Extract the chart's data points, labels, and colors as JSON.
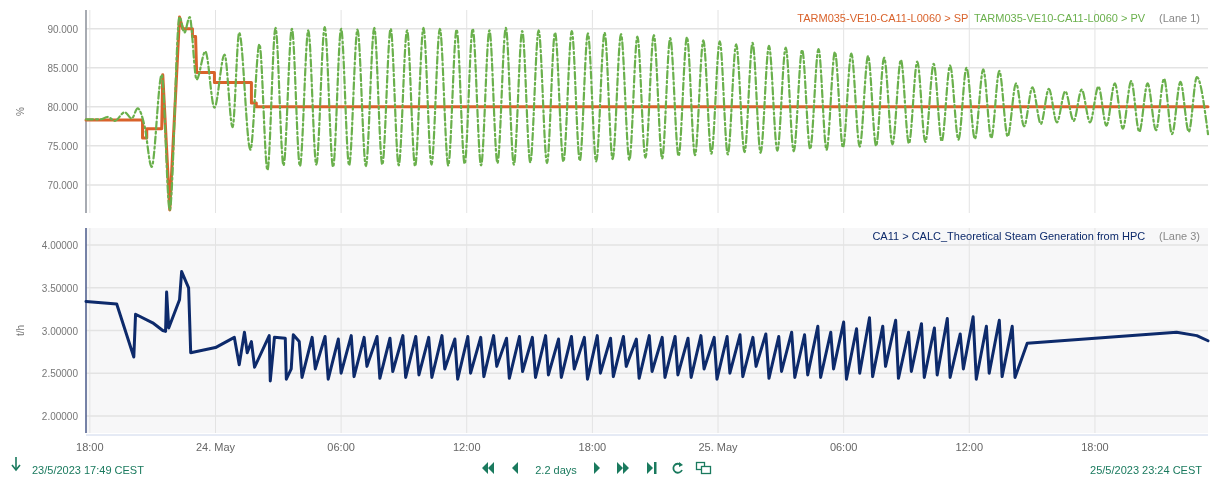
{
  "chart_data": [
    {
      "type": "line",
      "ylabel": "%",
      "xlim": [
        "2023-05-23T17:49",
        "2023-05-25T23:24"
      ],
      "xticks": [
        {
          "value": "2023-05-23T18:00",
          "label": null
        },
        {
          "value": "2023-05-24T00:00",
          "label": null
        },
        {
          "value": "2023-05-24T06:00",
          "label": null
        },
        {
          "value": "2023-05-24T12:00",
          "label": null
        },
        {
          "value": "2023-05-24T18:00",
          "label": null
        },
        {
          "value": "2023-05-25T00:00",
          "label": null
        },
        {
          "value": "2023-05-25T06:00",
          "label": null
        },
        {
          "value": "2023-05-25T12:00",
          "label": null
        },
        {
          "value": "2023-05-25T18:00",
          "label": null
        }
      ],
      "ylim": [
        66.4,
        92.4
      ],
      "yticks": [
        {
          "value": 70,
          "label": "70.000"
        },
        {
          "value": 75,
          "label": "75.000"
        },
        {
          "value": 80,
          "label": "80.000"
        },
        {
          "value": 85,
          "label": "85.000"
        },
        {
          "value": 90,
          "label": "90.000"
        }
      ],
      "tick_labels": "y",
      "grid": true,
      "legend": "top right",
      "annotations": [
        "(Lane 1)"
      ],
      "series": [
        {
          "name": "TARM035-VE10-CA11-L0060 > SP",
          "color": "#d9622b",
          "line_style": "solid",
          "x": [
            "2023-05-23T17:49",
            "2023-05-23T20:31",
            "2023-05-23T20:31",
            "2023-05-23T20:43",
            "2023-05-23T20:43",
            "2023-05-23T21:26",
            "2023-05-23T21:29",
            "2023-05-23T21:49",
            "2023-05-23T22:17",
            "2023-05-23T22:26",
            "2023-05-23T22:54",
            "2023-05-23T22:54",
            "2023-05-23T23:03",
            "2023-05-23T23:06",
            "2023-05-23T23:57",
            "2023-05-23T23:57",
            "2023-05-24T01:43",
            "2023-05-24T01:43",
            "2023-05-24T01:57",
            "2023-05-24T01:57",
            "2023-05-25T23:24"
          ],
          "values": [
            78.3,
            78.3,
            76.0,
            76.0,
            77.2,
            77.2,
            84.1,
            66.8,
            91.5,
            90.0,
            90.0,
            89.0,
            89.0,
            84.4,
            84.4,
            83.1,
            83.1,
            80.5,
            80.5,
            80.0,
            80.0
          ]
        },
        {
          "name": "TARM035-VE10-CA11-L0060 > PV",
          "color": "#6ab04c",
          "line_style": "dashed",
          "x": [
            "2023-05-23T17:49",
            "2023-05-23T18:29",
            "2023-05-23T18:52",
            "2023-05-23T19:11",
            "2023-05-23T19:40",
            "2023-05-23T20:00",
            "2023-05-23T20:17",
            "2023-05-23T20:37",
            "2023-05-23T20:57",
            "2023-05-23T21:26",
            "2023-05-23T21:49",
            "2023-05-23T22:17",
            "2023-05-23T22:31",
            "2023-05-23T22:46",
            "2023-05-23T23:06",
            "2023-05-23T23:31",
            "2023-05-23T23:57",
            "2023-05-24T00:26",
            "2023-05-24T00:49",
            "2023-05-24T01:08",
            "2023-05-24T01:40",
            "2023-05-24T02:06",
            "2023-05-24T02:29",
            "2023-05-24T02:52",
            "2023-05-24T03:15",
            "2023-05-24T03:39",
            "2023-05-24T04:02",
            "2023-05-24T04:26",
            "2023-05-24T04:49",
            "2023-05-24T05:13",
            "2023-05-24T05:37",
            "2023-05-24T06:00",
            "2023-05-24T06:23",
            "2023-05-24T06:47",
            "2023-05-24T07:11",
            "2023-05-24T07:35",
            "2023-05-24T07:58",
            "2023-05-24T08:22",
            "2023-05-24T08:45",
            "2023-05-24T09:09",
            "2023-05-24T09:32",
            "2023-05-24T09:56",
            "2023-05-24T10:19",
            "2023-05-24T10:43",
            "2023-05-24T11:07",
            "2023-05-24T11:31",
            "2023-05-24T11:54",
            "2023-05-24T12:17",
            "2023-05-24T12:41",
            "2023-05-24T13:05",
            "2023-05-24T13:28",
            "2023-05-24T13:52",
            "2023-05-24T14:15",
            "2023-05-24T14:39",
            "2023-05-24T15:02",
            "2023-05-24T15:26",
            "2023-05-24T15:50",
            "2023-05-24T16:13",
            "2023-05-24T16:37",
            "2023-05-24T17:01",
            "2023-05-24T17:24",
            "2023-05-24T17:47",
            "2023-05-24T18:11",
            "2023-05-24T18:35",
            "2023-05-24T18:58",
            "2023-05-24T19:22",
            "2023-05-24T19:46",
            "2023-05-24T20:09",
            "2023-05-24T20:32",
            "2023-05-24T20:56",
            "2023-05-24T21:20",
            "2023-05-24T21:43",
            "2023-05-24T22:07",
            "2023-05-24T22:31",
            "2023-05-24T22:54",
            "2023-05-24T23:18",
            "2023-05-24T23:41",
            "2023-05-25T00:05",
            "2023-05-25T00:28",
            "2023-05-25T00:52",
            "2023-05-25T01:16",
            "2023-05-25T01:39",
            "2023-05-25T02:02",
            "2023-05-25T02:26",
            "2023-05-25T02:50",
            "2023-05-25T03:14",
            "2023-05-25T03:37",
            "2023-05-25T04:01",
            "2023-05-25T04:24",
            "2023-05-25T04:48",
            "2023-05-25T05:11",
            "2023-05-25T05:35",
            "2023-05-25T05:58",
            "2023-05-25T06:22",
            "2023-05-25T06:46",
            "2023-05-25T07:10",
            "2023-05-25T07:33",
            "2023-05-25T07:56",
            "2023-05-25T08:20",
            "2023-05-25T08:44",
            "2023-05-25T09:07",
            "2023-05-25T09:31",
            "2023-05-25T09:54",
            "2023-05-25T10:18",
            "2023-05-25T10:41",
            "2023-05-25T11:05",
            "2023-05-25T11:29",
            "2023-05-25T11:52",
            "2023-05-25T12:16",
            "2023-05-25T12:40",
            "2023-05-25T13:03",
            "2023-05-25T13:26",
            "2023-05-25T13:50",
            "2023-05-25T14:14",
            "2023-05-25T14:37",
            "2023-05-25T15:01",
            "2023-05-25T15:25",
            "2023-05-25T15:48",
            "2023-05-25T16:11",
            "2023-05-25T16:35",
            "2023-05-25T16:59",
            "2023-05-25T17:22",
            "2023-05-25T17:46",
            "2023-05-25T18:10",
            "2023-05-25T18:33",
            "2023-05-25T18:57",
            "2023-05-25T19:20",
            "2023-05-25T19:44",
            "2023-05-25T20:07",
            "2023-05-25T20:31",
            "2023-05-25T20:55",
            "2023-05-25T21:18",
            "2023-05-25T21:41",
            "2023-05-25T22:05",
            "2023-05-25T22:29",
            "2023-05-25T22:52",
            "2023-05-25T23:24"
          ],
          "values": [
            78.4,
            78.4,
            78.7,
            78.2,
            79.3,
            78.5,
            79.8,
            77.5,
            72.3,
            84.1,
            66.8,
            91.5,
            89.5,
            91.5,
            83.5,
            87.1,
            79.9,
            86.7,
            77.4,
            89.5,
            74.5,
            88.0,
            71.9,
            90.1,
            72.5,
            90.0,
            72.4,
            89.8,
            72.6,
            90.2,
            72.3,
            90.0,
            72.5,
            89.9,
            72.4,
            90.1,
            72.6,
            90.0,
            72.5,
            89.8,
            72.4,
            90.1,
            72.6,
            90.0,
            72.5,
            89.9,
            72.7,
            90.0,
            72.5,
            89.8,
            72.8,
            90.1,
            72.6,
            89.7,
            72.9,
            89.8,
            72.8,
            89.5,
            73.0,
            89.7,
            73.1,
            89.4,
            73.0,
            89.5,
            73.3,
            89.3,
            73.2,
            89.0,
            73.5,
            89.2,
            73.4,
            88.8,
            73.7,
            88.9,
            73.8,
            88.5,
            74.0,
            88.4,
            73.9,
            88.0,
            74.2,
            88.2,
            74.1,
            87.8,
            74.4,
            87.6,
            74.3,
            87.3,
            74.6,
            87.4,
            74.5,
            87.0,
            74.8,
            86.8,
            74.9,
            86.5,
            75.0,
            86.3,
            75.2,
            86.0,
            75.3,
            85.8,
            75.5,
            85.5,
            75.6,
            85.3,
            75.8,
            85.0,
            75.9,
            84.8,
            76.0,
            84.6,
            76.2,
            83.0,
            77.5,
            82.5,
            77.8,
            82.3,
            78.0,
            82.0,
            78.2,
            82.2,
            78.0,
            82.6,
            77.6,
            83.0,
            77.2,
            83.3,
            76.8,
            83.0,
            77.0,
            83.6,
            76.5,
            83.2,
            76.8,
            83.8,
            76.5
          ]
        }
      ]
    },
    {
      "type": "line",
      "ylabel": "t/h",
      "xlim": [
        "2023-05-23T17:49",
        "2023-05-25T23:24"
      ],
      "xticks": [
        {
          "value": "2023-05-23T18:00",
          "label": "18:00"
        },
        {
          "value": "2023-05-24T00:00",
          "label": "24. May"
        },
        {
          "value": "2023-05-24T06:00",
          "label": "06:00"
        },
        {
          "value": "2023-05-24T12:00",
          "label": "12:00"
        },
        {
          "value": "2023-05-24T18:00",
          "label": "18:00"
        },
        {
          "value": "2023-05-25T00:00",
          "label": "25. May"
        },
        {
          "value": "2023-05-25T06:00",
          "label": "06:00"
        },
        {
          "value": "2023-05-25T12:00",
          "label": "12:00"
        },
        {
          "value": "2023-05-25T18:00",
          "label": "18:00"
        }
      ],
      "ylim": [
        1.8,
        4.2
      ],
      "yticks": [
        {
          "value": 2,
          "label": "2.00000"
        },
        {
          "value": 2.5,
          "label": "2.50000"
        },
        {
          "value": 3,
          "label": "3.00000"
        },
        {
          "value": 3.5,
          "label": "3.50000"
        },
        {
          "value": 4,
          "label": "4.00000"
        }
      ],
      "grid": true,
      "legend": "top right",
      "annotations": [
        "(Lane 3)",
        "23/5/2023 17:49  CEST",
        "2.2 days",
        "25/5/2023 23:24  CEST"
      ],
      "series": [
        {
          "name": "CA11 > CALC_Theoretical Steam Generation from HPC",
          "color": "#0d2a6b",
          "line_style": "solid",
          "x": [
            "2023-05-23T17:49",
            "2023-05-23T19:17",
            "2023-05-23T20:06",
            "2023-05-23T20:11",
            "2023-05-23T21:00",
            "2023-05-23T21:29",
            "2023-05-23T21:37",
            "2023-05-23T21:40",
            "2023-05-23T21:46",
            "2023-05-23T22:17",
            "2023-05-23T22:23",
            "2023-05-23T22:43",
            "2023-05-23T22:49",
            "2023-05-24T00:00",
            "2023-05-24T00:54",
            "2023-05-24T01:08",
            "2023-05-24T01:23",
            "2023-05-24T01:31",
            "2023-05-24T01:43",
            "2023-05-24T01:52",
            "2023-05-24T02:34",
            "2023-05-24T02:37",
            "2023-05-24T02:49",
            "2023-05-24T03:20",
            "2023-05-24T03:23",
            "2023-05-24T03:37",
            "2023-05-24T03:43",
            "2023-05-24T04:00",
            "2023-05-24T04:08",
            "2023-05-24T04:37",
            "2023-05-24T04:46",
            "2023-05-24T05:14",
            "2023-05-24T05:23",
            "2023-05-24T05:52",
            "2023-05-24T06:00",
            "2023-05-24T06:29",
            "2023-05-24T06:37",
            "2023-05-24T07:06",
            "2023-05-24T07:14",
            "2023-05-24T07:43",
            "2023-05-24T07:51",
            "2023-05-24T08:20",
            "2023-05-24T08:28",
            "2023-05-24T08:57",
            "2023-05-24T09:05",
            "2023-05-24T09:34",
            "2023-05-24T09:43",
            "2023-05-24T10:11",
            "2023-05-24T10:20",
            "2023-05-24T10:49",
            "2023-05-24T10:57",
            "2023-05-24T11:26",
            "2023-05-24T11:34",
            "2023-05-24T12:03",
            "2023-05-24T12:11",
            "2023-05-24T12:40",
            "2023-05-24T12:49",
            "2023-05-24T13:17",
            "2023-05-24T13:26",
            "2023-05-24T13:54",
            "2023-05-24T14:02",
            "2023-05-24T14:31",
            "2023-05-24T14:40",
            "2023-05-24T15:08",
            "2023-05-24T15:17",
            "2023-05-24T15:46",
            "2023-05-24T15:54",
            "2023-05-24T16:23",
            "2023-05-24T16:31",
            "2023-05-24T17:00",
            "2023-05-24T17:08",
            "2023-05-24T17:37",
            "2023-05-24T17:46",
            "2023-05-24T18:14",
            "2023-05-24T18:23",
            "2023-05-24T18:52",
            "2023-05-24T19:00",
            "2023-05-24T19:29",
            "2023-05-24T19:37",
            "2023-05-24T20:06",
            "2023-05-24T20:14",
            "2023-05-24T20:43",
            "2023-05-24T20:51",
            "2023-05-24T21:20",
            "2023-05-24T21:28",
            "2023-05-24T21:57",
            "2023-05-24T22:05",
            "2023-05-24T22:34",
            "2023-05-24T22:43",
            "2023-05-24T23:11",
            "2023-05-24T23:20",
            "2023-05-24T23:49",
            "2023-05-24T23:57",
            "2023-05-25T00:26",
            "2023-05-25T00:34",
            "2023-05-25T01:03",
            "2023-05-25T01:11",
            "2023-05-25T01:40",
            "2023-05-25T01:49",
            "2023-05-25T02:17",
            "2023-05-25T02:26",
            "2023-05-25T02:54",
            "2023-05-25T03:02",
            "2023-05-25T03:31",
            "2023-05-25T03:40",
            "2023-05-25T04:08",
            "2023-05-25T04:17",
            "2023-05-25T04:46",
            "2023-05-25T04:54",
            "2023-05-25T05:23",
            "2023-05-25T05:31",
            "2023-05-25T06:00",
            "2023-05-25T06:08",
            "2023-05-25T06:37",
            "2023-05-25T06:46",
            "2023-05-25T07:14",
            "2023-05-25T07:23",
            "2023-05-25T07:52",
            "2023-05-25T08:00",
            "2023-05-25T08:29",
            "2023-05-25T08:37",
            "2023-05-25T09:06",
            "2023-05-25T09:14",
            "2023-05-25T09:43",
            "2023-05-25T09:51",
            "2023-05-25T10:20",
            "2023-05-25T10:28",
            "2023-05-25T10:57",
            "2023-05-25T11:05",
            "2023-05-25T11:34",
            "2023-05-25T11:43",
            "2023-05-25T12:11",
            "2023-05-25T12:20",
            "2023-05-25T12:49",
            "2023-05-25T12:57",
            "2023-05-25T13:26",
            "2023-05-25T13:34",
            "2023-05-25T14:03",
            "2023-05-25T14:11",
            "2023-05-25T14:46",
            "2023-05-25T21:54",
            "2023-05-25T22:52",
            "2023-05-25T23:24"
          ],
          "values": [
            3.34,
            3.31,
            2.69,
            3.19,
            3.09,
            3.0,
            2.99,
            3.45,
            3.03,
            3.36,
            3.69,
            3.5,
            2.74,
            2.8,
            2.92,
            2.6,
            2.98,
            2.74,
            2.87,
            2.57,
            2.94,
            2.41,
            2.92,
            2.91,
            2.43,
            2.55,
            2.95,
            2.87,
            2.45,
            2.92,
            2.55,
            2.93,
            2.43,
            2.9,
            2.5,
            2.94,
            2.46,
            2.92,
            2.58,
            2.93,
            2.44,
            2.91,
            2.52,
            2.94,
            2.45,
            2.93,
            2.48,
            2.92,
            2.45,
            2.94,
            2.55,
            2.9,
            2.43,
            2.93,
            2.5,
            2.92,
            2.46,
            2.94,
            2.58,
            2.91,
            2.44,
            2.93,
            2.52,
            2.92,
            2.45,
            2.94,
            2.48,
            2.9,
            2.45,
            2.93,
            2.55,
            2.92,
            2.43,
            2.94,
            2.5,
            2.91,
            2.46,
            2.93,
            2.58,
            2.9,
            2.44,
            2.94,
            2.52,
            2.92,
            2.45,
            2.93,
            2.48,
            2.91,
            2.45,
            2.94,
            2.55,
            2.92,
            2.43,
            2.93,
            2.5,
            2.95,
            2.46,
            2.92,
            2.58,
            2.96,
            2.44,
            2.93,
            2.52,
            2.98,
            2.45,
            2.95,
            2.48,
            3.05,
            2.45,
            2.98,
            2.55,
            3.1,
            2.43,
            3.02,
            2.5,
            3.15,
            2.46,
            3.05,
            2.58,
            3.12,
            2.44,
            2.98,
            2.52,
            3.08,
            2.45,
            3.03,
            2.48,
            3.14,
            2.45,
            2.96,
            2.55,
            3.16,
            2.43,
            3.05,
            2.5,
            3.12,
            2.46,
            3.05,
            2.45,
            2.85,
            2.98,
            2.94,
            2.88
          ]
        }
      ]
    }
  ]
}
